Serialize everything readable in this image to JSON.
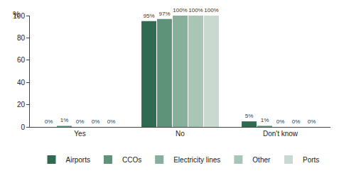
{
  "chart_data": {
    "type": "bar",
    "y_label": "%",
    "categories": [
      "Yes",
      "No",
      "Don't know"
    ],
    "series": [
      {
        "name": "Airports",
        "color": "#2f6b50",
        "values": [
          0,
          95,
          5
        ],
        "value_labels": [
          "0%",
          "95%",
          "5%"
        ]
      },
      {
        "name": "CCOs",
        "color": "#5e9279",
        "values": [
          1,
          97,
          1
        ],
        "value_labels": [
          "1%",
          "97%",
          "1%"
        ]
      },
      {
        "name": "Electricity lines",
        "color": "#86b09a",
        "values": [
          0,
          100,
          0
        ],
        "value_labels": [
          "0%",
          "100%",
          "0%"
        ]
      },
      {
        "name": "Other",
        "color": "#a9c6b5",
        "values": [
          0,
          100,
          0
        ],
        "value_labels": [
          "0%",
          "100%",
          "0%"
        ]
      },
      {
        "name": "Ports",
        "color": "#c9d9cf",
        "values": [
          0,
          100,
          0
        ],
        "value_labels": [
          "0%",
          "100%",
          "0%"
        ]
      }
    ],
    "ylim": [
      0,
      100
    ],
    "yticks": [
      0,
      20,
      40,
      60,
      80,
      100
    ],
    "grid": false,
    "legend": "bottom",
    "data_labels": true
  }
}
